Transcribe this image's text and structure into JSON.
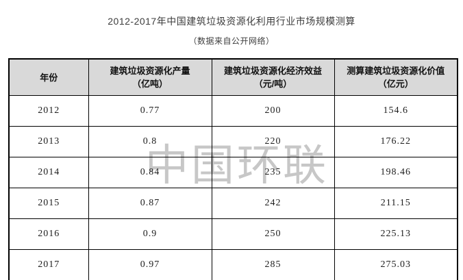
{
  "title": "2012-2017年中国建筑垃圾资源化利用行业市场规模测算",
  "subtitle": "（数据来自公开网络）",
  "watermark": "中国环联",
  "colors": {
    "header_bg": "#d9d9d9",
    "border": "#000000",
    "watermark": "#c7c7c7",
    "text": "#1d1d1d"
  },
  "chart_data": {
    "type": "table",
    "title": "2012-2017年中国建筑垃圾资源化利用行业市场规模测算",
    "subtitle": "（数据来自公开网络）",
    "columns": [
      {
        "label": "年份",
        "unit": ""
      },
      {
        "label": "建筑垃圾资源化产量",
        "unit": "（亿吨）"
      },
      {
        "label": "建筑垃圾资源化经济效益",
        "unit": "（元/吨）"
      },
      {
        "label": "测算建筑垃圾资源化价值",
        "unit": "（亿元）"
      }
    ],
    "rows": [
      [
        "2012",
        "0.77",
        "200",
        "154.6"
      ],
      [
        "2013",
        "0.8",
        "220",
        "176.22"
      ],
      [
        "2014",
        "0.84",
        "235",
        "198.46"
      ],
      [
        "2015",
        "0.87",
        "242",
        "211.15"
      ],
      [
        "2016",
        "0.9",
        "250",
        "225.13"
      ],
      [
        "2017",
        "0.97",
        "285",
        "275.03"
      ]
    ]
  }
}
